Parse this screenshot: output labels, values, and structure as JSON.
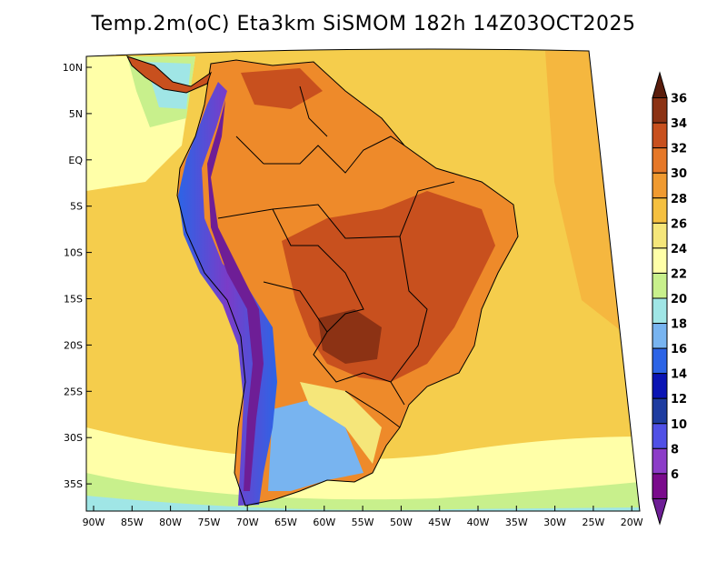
{
  "title": "Temp.2m(oC) Eta3km SiSMOM 182h 14Z03OCT2025",
  "map": {
    "lat_ticks": [
      "10N",
      "5N",
      "EQ",
      "5S",
      "10S",
      "15S",
      "20S",
      "25S",
      "30S",
      "35S"
    ],
    "lon_ticks": [
      "90W",
      "85W",
      "80W",
      "75W",
      "70W",
      "65W",
      "60W",
      "55W",
      "50W",
      "45W",
      "40W",
      "35W",
      "30W",
      "25W",
      "20W"
    ],
    "ocean_color": "#f5cd4c"
  },
  "colorbar": {
    "levels": [
      "36",
      "34",
      "32",
      "30",
      "28",
      "26",
      "24",
      "22",
      "20",
      "18",
      "16",
      "14",
      "12",
      "10",
      "8",
      "6"
    ],
    "colors": [
      "#5a1d0c",
      "#8c3214",
      "#c8501e",
      "#e67828",
      "#f09a30",
      "#f5c040",
      "#f5e67a",
      "#ffffa8",
      "#c8f08c",
      "#a0e6e6",
      "#78b4f0",
      "#2c64e6",
      "#0a14b4",
      "#1e3ca0",
      "#5050e6",
      "#8c3cc8",
      "#7a0a8c",
      "#6e1e96"
    ]
  }
}
